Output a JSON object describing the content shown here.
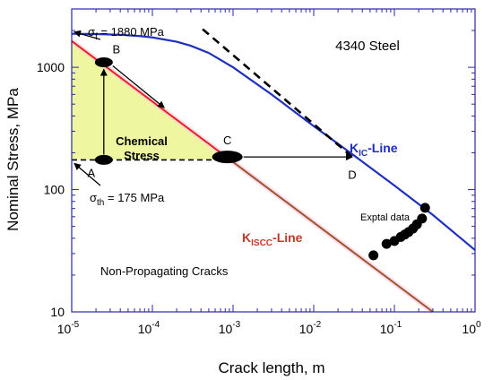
{
  "chart_data": {
    "type": "line",
    "title": "4340 Steel",
    "xlabel": "Crack length, m",
    "ylabel": "Nominal Stress, MPa",
    "x_scale": "log",
    "y_scale": "log",
    "xlim": [
      1e-05,
      1
    ],
    "ylim": [
      10,
      3000
    ],
    "x_ticks": [
      {
        "value": 1e-05,
        "base": "10",
        "exp": "-5"
      },
      {
        "value": 0.0001,
        "base": "10",
        "exp": "-4"
      },
      {
        "value": 0.001,
        "base": "10",
        "exp": "-3"
      },
      {
        "value": 0.01,
        "base": "10",
        "exp": "-2"
      },
      {
        "value": 0.1,
        "base": "10",
        "exp": "-1"
      },
      {
        "value": 1,
        "base": "10",
        "exp": "0"
      }
    ],
    "y_ticks": [
      {
        "value": 10,
        "label": "10"
      },
      {
        "value": 100,
        "label": "100"
      },
      {
        "value": 1000,
        "label": "1000"
      }
    ],
    "series": [
      {
        "name": "K_IC-Line",
        "color": "#1f2fc0",
        "style": "solid",
        "x": [
          1e-05,
          2e-05,
          4e-05,
          7e-05,
          0.0001,
          0.0002,
          0.0003,
          0.0005,
          0.0007,
          0.001,
          0.003,
          0.01,
          0.03,
          0.1,
          0.3,
          1
        ],
        "y": [
          1880,
          1870,
          1845,
          1800,
          1755,
          1620,
          1500,
          1310,
          1150,
          1000,
          600,
          330,
          195,
          108,
          62,
          32
        ]
      },
      {
        "name": "K_ISCC-Line",
        "color_segments": [
          {
            "color": "#e82020",
            "x_range": [
              1e-05,
              0.001
            ]
          },
          {
            "color": "#a0522d",
            "x_range": [
              0.001,
              0.3
            ]
          }
        ],
        "style": "solid",
        "x": [
          1e-05,
          0.3
        ],
        "y": [
          1640,
          10
        ]
      },
      {
        "name": "Dashed asymptote",
        "color": "#000000",
        "style": "dashed",
        "x": [
          0.00042,
          0.03
        ],
        "y": [
          2050,
          185
        ]
      },
      {
        "name": "Exptal data",
        "type": "scatter",
        "color": "#000000",
        "x": [
          0.055,
          0.08,
          0.1,
          0.12,
          0.135,
          0.15,
          0.17,
          0.19,
          0.22,
          0.24
        ],
        "y": [
          29,
          36,
          38,
          41,
          43,
          45,
          48,
          52,
          58,
          71
        ]
      }
    ],
    "points": [
      {
        "label": "A",
        "x": 2.5e-05,
        "y": 175
      },
      {
        "label": "B",
        "x": 2.5e-05,
        "y": 1100
      },
      {
        "label": "C",
        "x": 0.00085,
        "y": 185
      },
      {
        "label": "D",
        "x": 0.03,
        "y": 175
      }
    ],
    "annotations": {
      "sigma_f": {
        "symbol": "σ",
        "sub": "f",
        "text": " = 1880 MPa"
      },
      "sigma_th": {
        "symbol": "σ",
        "sub": "th",
        "text": " = 175 MPa"
      },
      "chemical_stress": [
        "Chemical",
        "Stress"
      ],
      "kic": {
        "k": "K",
        "sub": "IC",
        "rest": "-Line"
      },
      "kiscc": {
        "k": "K",
        "sub": "ISCC",
        "rest": "-Line"
      },
      "exptal": "Exptal data",
      "non_prop": "Non-Propagating Cracks"
    },
    "colors": {
      "chemical_fill": "#eef7a0",
      "iscc_glow": "#f8c8e0",
      "frame": "#2a2aa0"
    },
    "grid": false,
    "legend": "none"
  }
}
